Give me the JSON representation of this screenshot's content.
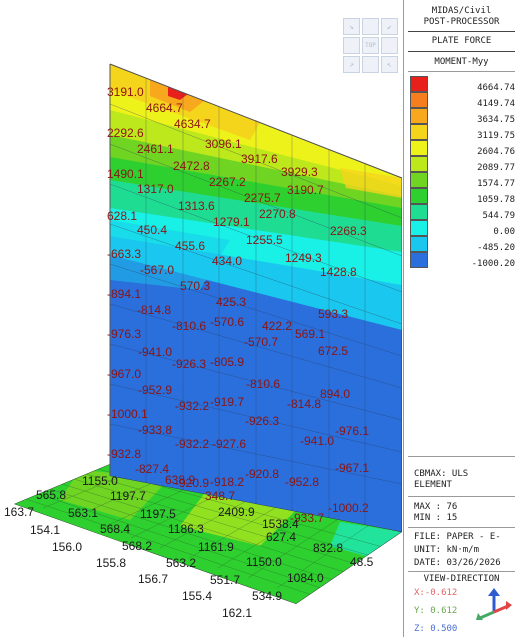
{
  "panel": {
    "title_lines": [
      "MIDAS/Civil",
      "POST-PROCESSOR"
    ],
    "result_type": "PLATE FORCE",
    "component": "MOMENT-Myy",
    "legend": {
      "values": [
        "4664.74",
        "4149.74",
        "3634.75",
        "3119.75",
        "2604.76",
        "2089.77",
        "1574.77",
        "1059.78",
        "544.79",
        "0.00",
        "-485.20",
        "-1000.20"
      ],
      "colors": [
        "#e8201c",
        "#f57f1e",
        "#f7a81d",
        "#f5d51b",
        "#eef21b",
        "#bde81b",
        "#6fd422",
        "#2ed02f",
        "#1fdc93",
        "#19f0e6",
        "#1ac7ee",
        "#2a6fdc"
      ]
    },
    "cbmax": "CBMAX: ULS",
    "element": "ELEMENT",
    "max": "MAX : 76",
    "min": "MIN : 15",
    "file": "FILE: PAPER - E-",
    "unit": "UNIT: kN·m/m",
    "date": "DATE: 03/26/2026",
    "view_direction": "VIEW-DIRECTION",
    "vx": "X:-0.612",
    "vy": "Y: 0.612",
    "vz": "Z: 0.500"
  },
  "navcube": {
    "top_label": "TOP"
  },
  "contour": {
    "wall_labels": [
      "3191.0",
      "4664.7",
      "4634.7",
      "3096.1",
      "3917.6",
      "3929.3",
      "2292.6",
      "2461.1",
      "2472.8",
      "2267.2",
      "2275.7",
      "3190.7",
      "1490.1",
      "1317.0",
      "1313.6",
      "1279.1",
      "2270.8",
      "628.1",
      "450.4",
      "455.6",
      "434.0",
      "1255.5",
      "1249.3",
      "2268.3",
      "-663.3",
      "-567.0",
      "570.3",
      "425.3",
      "1428.8",
      "-894.1",
      "-570.6",
      "422.2",
      "-814.8",
      "-570.7",
      "593.3",
      "-810.6",
      "-976.3",
      "-805.9",
      "569.1",
      "-941.0",
      "-926.3",
      "-810.6",
      "672.5",
      "-967.0",
      "-919.7",
      "-814.8",
      "-952.9",
      "-932.2",
      "-926.3",
      "894.0",
      "-1000.1",
      "-927.6",
      "-941.0",
      "-933.8",
      "-932.2",
      "-976.1",
      "-920.9",
      "-918.2",
      "-952.8",
      "-932.8",
      "-920.8",
      "-967.1",
      "-827.4",
      "-933.7",
      "638.9",
      "-1000.2",
      "348.7"
    ],
    "slab_labels": [
      "1155.0",
      "565.8",
      "1197.7",
      "163.7",
      "563.1",
      "1197.5",
      "2409.9",
      "154.1",
      "568.4",
      "1186.3",
      "1538.4",
      "156.0",
      "568.2",
      "1161.9",
      "627.4",
      "155.8",
      "563.2",
      "1150.0",
      "832.8",
      "48.5",
      "156.7",
      "551.7",
      "1084.0",
      "155.4",
      "534.9",
      "162.1"
    ]
  }
}
